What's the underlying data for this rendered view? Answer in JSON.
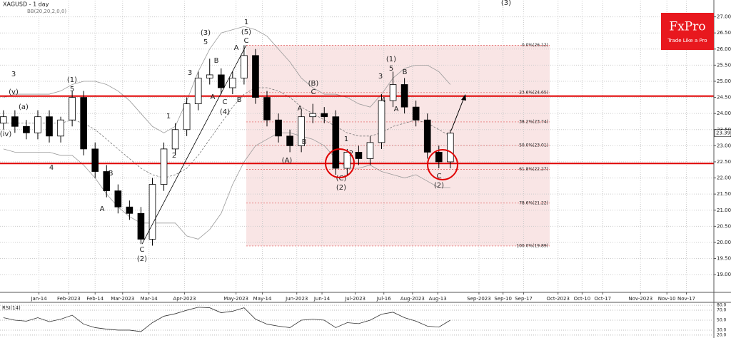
{
  "chart_data": {
    "type": "candlestick",
    "title": "XAGUSD - 1 day",
    "subtitle": "BB(20,20,2,0,0)",
    "brand": "FxPro",
    "brand_tagline": "Trade Like a Pro",
    "x": [
      0,
      1,
      2,
      3,
      4,
      5,
      6,
      7,
      8,
      9,
      10,
      11,
      12,
      13,
      14,
      15,
      16,
      17,
      18,
      19,
      20,
      21,
      22,
      23,
      24,
      25,
      26,
      27,
      28,
      29,
      30,
      31,
      32,
      33,
      34,
      35,
      36,
      37,
      38,
      39
    ],
    "open": [
      23.7,
      23.9,
      23.6,
      23.4,
      23.9,
      23.3,
      23.8,
      24.5,
      22.9,
      22.2,
      21.6,
      21.1,
      20.9,
      20.1,
      21.8,
      22.9,
      23.5,
      24.3,
      25.1,
      25.2,
      24.8,
      25.1,
      25.8,
      24.5,
      23.8,
      23.3,
      23.0,
      23.9,
      24.0,
      23.9,
      22.3,
      22.8,
      22.6,
      23.1,
      24.4,
      24.9,
      24.2,
      23.8,
      22.8,
      22.5
    ],
    "high": [
      24.1,
      24.1,
      23.8,
      24.1,
      24.1,
      23.9,
      24.7,
      24.7,
      23.1,
      22.4,
      21.8,
      21.3,
      21.1,
      22.0,
      23.1,
      23.7,
      24.5,
      25.3,
      25.7,
      25.4,
      25.3,
      26.12,
      26.0,
      24.7,
      24.0,
      23.5,
      24.1,
      24.3,
      24.2,
      24.1,
      22.9,
      23.0,
      23.3,
      24.6,
      25.3,
      25.1,
      24.4,
      24.0,
      23.0,
      23.5
    ],
    "low": [
      23.5,
      23.4,
      23.2,
      23.2,
      23.1,
      23.1,
      23.6,
      22.7,
      22.0,
      21.4,
      20.9,
      20.7,
      19.95,
      19.9,
      21.6,
      22.7,
      23.3,
      24.1,
      24.9,
      24.6,
      24.6,
      24.9,
      24.3,
      23.6,
      23.1,
      22.8,
      22.8,
      23.7,
      23.7,
      22.1,
      22.1,
      22.4,
      22.4,
      22.9,
      24.2,
      24.0,
      23.6,
      22.6,
      22.3,
      22.3
    ],
    "close": [
      23.9,
      23.6,
      23.4,
      23.9,
      23.3,
      23.8,
      24.5,
      22.9,
      22.2,
      21.6,
      21.1,
      20.9,
      20.1,
      21.8,
      22.9,
      23.5,
      24.3,
      25.1,
      25.2,
      24.8,
      25.1,
      25.8,
      24.5,
      23.8,
      23.3,
      23.0,
      23.9,
      24.0,
      23.9,
      22.3,
      22.8,
      22.6,
      23.1,
      24.4,
      24.9,
      24.2,
      23.8,
      22.8,
      22.5,
      23.39
    ],
    "bands": [
      {
        "color": "#9a9a9a",
        "values": [
          24.5,
          24.6,
          24.6,
          24.6,
          24.6,
          24.7,
          24.9,
          25.0,
          25.0,
          24.9,
          24.7,
          24.4,
          24.0,
          23.6,
          23.4,
          23.6,
          24.4,
          25.3,
          26.0,
          26.5,
          26.6,
          26.7,
          26.6,
          26.4,
          26.0,
          25.6,
          25.1,
          24.8,
          24.6,
          24.6,
          24.5,
          24.3,
          24.2,
          24.6,
          25.1,
          25.4,
          25.5,
          25.5,
          25.3,
          24.9
        ]
      },
      {
        "color": "#777777",
        "dashed": true,
        "values": [
          23.7,
          23.7,
          23.7,
          23.7,
          23.7,
          23.7,
          23.8,
          23.7,
          23.5,
          23.2,
          22.9,
          22.6,
          22.3,
          22.1,
          22.0,
          22.1,
          22.3,
          22.7,
          23.2,
          23.7,
          24.2,
          24.6,
          24.8,
          24.8,
          24.7,
          24.5,
          24.2,
          24.0,
          23.8,
          23.6,
          23.4,
          23.3,
          23.3,
          23.4,
          23.6,
          23.7,
          23.8,
          23.7,
          23.5,
          23.3
        ]
      },
      {
        "color": "#9a9a9a",
        "values": [
          22.9,
          22.8,
          22.8,
          22.8,
          22.8,
          22.7,
          22.7,
          22.4,
          22.0,
          21.5,
          21.1,
          20.8,
          20.6,
          20.6,
          20.6,
          20.6,
          20.2,
          20.1,
          20.4,
          20.9,
          21.8,
          22.5,
          23.0,
          23.2,
          23.4,
          23.4,
          23.3,
          23.2,
          23.0,
          22.6,
          22.3,
          22.3,
          22.4,
          22.2,
          22.1,
          22.0,
          22.1,
          21.9,
          21.7,
          21.7
        ]
      }
    ],
    "xlim": [
      -0.3,
      62
    ],
    "xticks": [
      {
        "value": 3.1,
        "label": "Jan-14"
      },
      {
        "value": 5.7,
        "label": "Feb-2023"
      },
      {
        "value": 8.0,
        "label": "Feb-14"
      },
      {
        "value": 10.4,
        "label": "Mar-2023"
      },
      {
        "value": 12.7,
        "label": "Mar-14"
      },
      {
        "value": 15.8,
        "label": "Apr-2023"
      },
      {
        "value": 20.3,
        "label": "May-2023"
      },
      {
        "value": 22.6,
        "label": "May-14"
      },
      {
        "value": 25.6,
        "label": "Jun-2023"
      },
      {
        "value": 27.8,
        "label": "Jun-14"
      },
      {
        "value": 30.7,
        "label": "Jul-2023"
      },
      {
        "value": 33.2,
        "label": "Jul-16"
      },
      {
        "value": 35.7,
        "label": "Aug-2023"
      },
      {
        "value": 37.9,
        "label": "Aug-13"
      },
      {
        "value": 41.5,
        "label": "Sep-2023"
      },
      {
        "value": 43.6,
        "label": "Sep-10"
      },
      {
        "value": 45.4,
        "label": "Sep-17"
      },
      {
        "value": 48.4,
        "label": "Oct-2023"
      },
      {
        "value": 50.5,
        "label": "Oct-10"
      },
      {
        "value": 52.3,
        "label": "Oct-17"
      },
      {
        "value": 55.6,
        "label": "Nov-2023"
      },
      {
        "value": 57.9,
        "label": "Nov-10"
      },
      {
        "value": 59.6,
        "label": "Nov-17"
      }
    ],
    "ylim": [
      18.45,
      27.5
    ],
    "yticks": [
      {
        "value": 27,
        "label": "27.00"
      },
      {
        "value": 26.5,
        "label": "26.50"
      },
      {
        "value": 26,
        "label": "26.00"
      },
      {
        "value": 25.5,
        "label": "25.50"
      },
      {
        "value": 25,
        "label": "25.00"
      },
      {
        "value": 24.5,
        "label": "24.50"
      },
      {
        "value": 24,
        "label": "24.00"
      },
      {
        "value": 23.5,
        "label": "23.50"
      },
      {
        "value": 23,
        "label": "23.00"
      },
      {
        "value": 22.5,
        "label": "22.50"
      },
      {
        "value": 22,
        "label": "22.00"
      },
      {
        "value": 21.5,
        "label": "21.50"
      },
      {
        "value": 21,
        "label": "21.00"
      },
      {
        "value": 20.5,
        "label": "20.50"
      },
      {
        "value": 20,
        "label": "20.00"
      },
      {
        "value": 19.5,
        "label": "19.50"
      },
      {
        "value": 19,
        "label": "19.00"
      }
    ],
    "grid": true,
    "last_price": {
      "value": 23.39,
      "label": "23.39"
    },
    "levels": {
      "color": "#e00000",
      "values": [
        24.54,
        22.45
      ]
    },
    "fib_levels": [
      {
        "value": 26.12,
        "label": "0.0%(26.12)"
      },
      {
        "value": 24.65,
        "label": "23.6%(24.65)"
      },
      {
        "value": 23.74,
        "label": "38.2%(23.74)"
      },
      {
        "value": 23.01,
        "label": "50.0%(23.01)"
      },
      {
        "value": 22.27,
        "label": "61.8%(22.27)"
      },
      {
        "value": 21.22,
        "label": "78.6%(21.22)"
      },
      {
        "value": 19.89,
        "label": "100.0%(19.89)"
      }
    ],
    "annotations": [
      "3",
      "(v)",
      "(a)",
      "(iv)",
      "4",
      "(1)",
      "5",
      "B",
      "A",
      "C",
      "(2)",
      "2",
      "1",
      "3",
      "(3)",
      "5",
      "B",
      "A",
      "C",
      "(4)",
      "B",
      "A",
      "C",
      "(5)",
      "1",
      "A",
      "B",
      "(A)",
      "(B)",
      "C",
      "1",
      "2",
      "(C)",
      "(2)",
      "(1)",
      "5",
      "3",
      "4",
      "B",
      "A",
      "C",
      "(2)",
      "(3)"
    ],
    "rsi": {
      "title": "RSI(14)",
      "ylim": [
        17,
        83
      ],
      "yticks": [
        {
          "value": 80,
          "label": "80.0"
        },
        {
          "value": 70,
          "label": "70.0"
        },
        {
          "value": 50,
          "label": "50.0"
        },
        {
          "value": 30,
          "label": "30.0"
        },
        {
          "value": 20,
          "label": "20.0"
        }
      ],
      "values": [
        55,
        50,
        48,
        55,
        47,
        52,
        60,
        42,
        35,
        32,
        30,
        30,
        27,
        45,
        58,
        63,
        70,
        76,
        75,
        65,
        68,
        75,
        52,
        42,
        38,
        35,
        50,
        52,
        50,
        35,
        45,
        43,
        50,
        62,
        66,
        55,
        48,
        38,
        36,
        50
      ]
    }
  }
}
